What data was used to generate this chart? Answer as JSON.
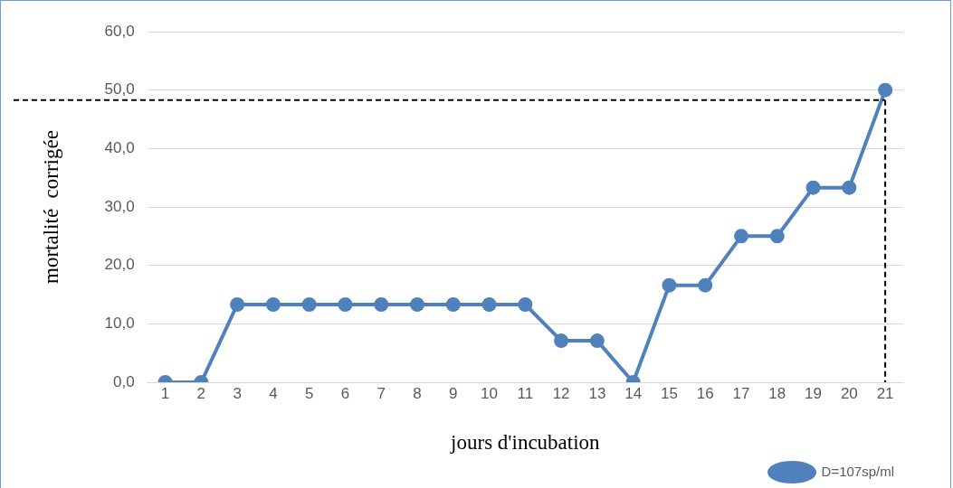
{
  "chart_data": {
    "type": "line",
    "xlabel": "jours d'incubation",
    "ylabel": "mortalité  corrigée",
    "x": [
      1,
      2,
      3,
      4,
      5,
      6,
      7,
      8,
      9,
      10,
      11,
      12,
      13,
      14,
      15,
      16,
      17,
      18,
      19,
      20,
      21
    ],
    "series": [
      {
        "name": "D=107sp/ml",
        "color": "#4f81bd",
        "values": [
          0,
          0,
          13.3,
          13.3,
          13.3,
          13.3,
          13.3,
          13.3,
          13.3,
          13.3,
          13.3,
          7.1,
          7.1,
          0,
          16.6,
          16.6,
          25,
          25,
          33.3,
          33.3,
          50
        ]
      }
    ],
    "xlim": [
      0.5,
      21.5
    ],
    "xticks": [
      1,
      2,
      3,
      4,
      5,
      6,
      7,
      8,
      9,
      10,
      11,
      12,
      13,
      14,
      15,
      16,
      17,
      18,
      19,
      20,
      21
    ],
    "ylim": [
      0,
      60
    ],
    "yticks": [
      {
        "value": 0,
        "label": "0,0"
      },
      {
        "value": 10,
        "label": "10,0"
      },
      {
        "value": 20,
        "label": "20,0"
      },
      {
        "value": 30,
        "label": "30,0"
      },
      {
        "value": 40,
        "label": "40,0"
      },
      {
        "value": 50,
        "label": "50,0"
      },
      {
        "value": 60,
        "label": "60,0"
      }
    ],
    "ref_lines": [
      {
        "axis": "y",
        "value": 48.3,
        "color": "#000000",
        "line_style": "dashed"
      },
      {
        "axis": "x",
        "value": 21,
        "color": "#000000",
        "line_style": "dashed"
      }
    ],
    "grid": "y",
    "legend": "bottom right",
    "marker": "circle",
    "line_style": "solid"
  }
}
